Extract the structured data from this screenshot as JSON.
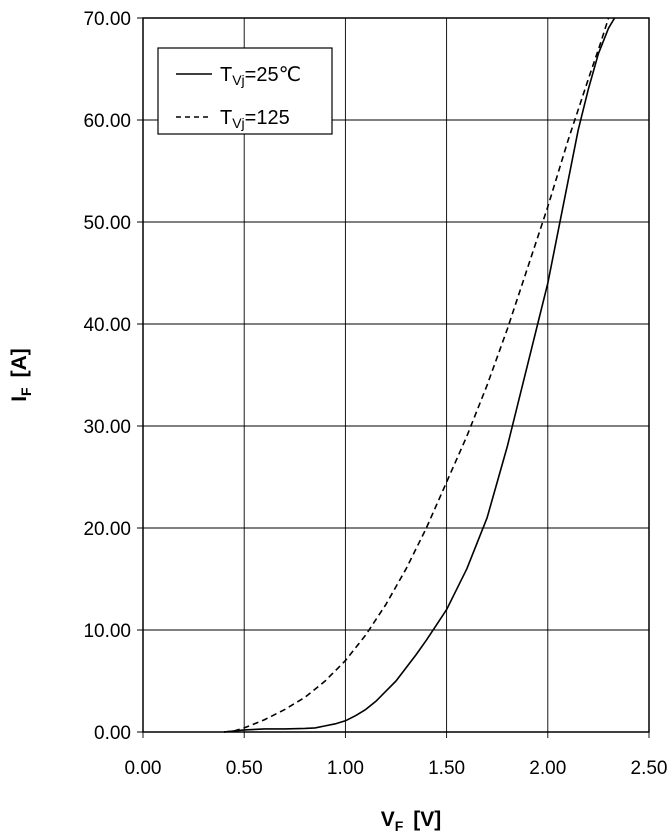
{
  "chart_data": {
    "type": "line",
    "title": "",
    "xlabel": {
      "main": "V",
      "sub": "F",
      "unit": "[V]"
    },
    "ylabel": {
      "main": "I",
      "sub": "F",
      "unit": "[A]"
    },
    "xlim": [
      0,
      2.5
    ],
    "ylim": [
      0,
      70
    ],
    "x_ticks": [
      "0.00",
      "0.50",
      "1.00",
      "1.50",
      "2.00",
      "2.50"
    ],
    "y_ticks": [
      "0.00",
      "10.00",
      "20.00",
      "30.00",
      "40.00",
      "50.00",
      "60.00",
      "70.00"
    ],
    "grid": true,
    "legend_position": "top-left",
    "legend": [
      {
        "prefix": "T",
        "sub": "Vj",
        "suffix": "=25℃",
        "style": "solid"
      },
      {
        "prefix": "T",
        "sub": "Vj",
        "suffix": "=125",
        "style": "dashed"
      }
    ],
    "series": [
      {
        "name": "TVj=25℃",
        "style": "solid",
        "color": "#000000",
        "points": [
          [
            0.4,
            0.0
          ],
          [
            0.5,
            0.2
          ],
          [
            0.6,
            0.3
          ],
          [
            0.7,
            0.3
          ],
          [
            0.8,
            0.35
          ],
          [
            0.85,
            0.4
          ],
          [
            0.9,
            0.6
          ],
          [
            0.95,
            0.8
          ],
          [
            1.0,
            1.1
          ],
          [
            1.05,
            1.6
          ],
          [
            1.1,
            2.2
          ],
          [
            1.15,
            3.0
          ],
          [
            1.2,
            4.0
          ],
          [
            1.25,
            5.0
          ],
          [
            1.3,
            6.3
          ],
          [
            1.35,
            7.6
          ],
          [
            1.4,
            9.0
          ],
          [
            1.45,
            10.5
          ],
          [
            1.5,
            12.0
          ],
          [
            1.55,
            14.0
          ],
          [
            1.6,
            16.0
          ],
          [
            1.65,
            18.5
          ],
          [
            1.7,
            21.0
          ],
          [
            1.75,
            24.5
          ],
          [
            1.8,
            28.0
          ],
          [
            1.85,
            32.0
          ],
          [
            1.9,
            36.0
          ],
          [
            1.95,
            40.0
          ],
          [
            2.0,
            44.0
          ],
          [
            2.05,
            49.0
          ],
          [
            2.1,
            54.0
          ],
          [
            2.15,
            59.0
          ],
          [
            2.2,
            63.0
          ],
          [
            2.25,
            66.5
          ],
          [
            2.3,
            69.0
          ],
          [
            2.33,
            70.0
          ]
        ]
      },
      {
        "name": "TVj=125",
        "style": "dashed",
        "color": "#000000",
        "points": [
          [
            0.4,
            0.0
          ],
          [
            0.45,
            0.1
          ],
          [
            0.5,
            0.4
          ],
          [
            0.55,
            0.8
          ],
          [
            0.6,
            1.2
          ],
          [
            0.7,
            2.2
          ],
          [
            0.8,
            3.4
          ],
          [
            0.9,
            5.0
          ],
          [
            1.0,
            7.0
          ],
          [
            1.1,
            9.5
          ],
          [
            1.2,
            12.5
          ],
          [
            1.3,
            16.0
          ],
          [
            1.4,
            20.0
          ],
          [
            1.5,
            24.5
          ],
          [
            1.6,
            29.0
          ],
          [
            1.7,
            34.0
          ],
          [
            1.8,
            39.5
          ],
          [
            1.9,
            45.5
          ],
          [
            2.0,
            51.5
          ],
          [
            2.1,
            58.0
          ],
          [
            2.2,
            64.0
          ],
          [
            2.26,
            67.5
          ],
          [
            2.3,
            70.0
          ]
        ]
      }
    ]
  }
}
